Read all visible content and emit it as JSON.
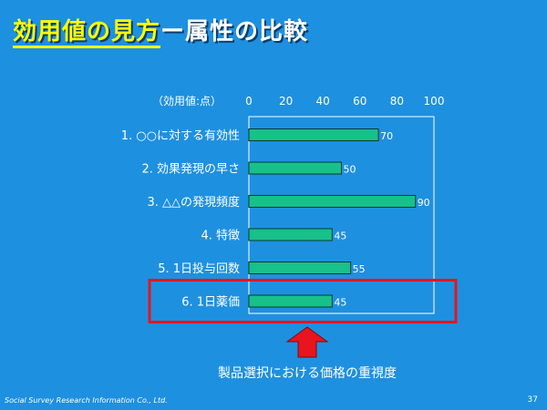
{
  "slide": {
    "title_highlight": "効用値の見方",
    "title_rest": "ー属性の比較",
    "footer": "Social Survey Research Information Co., Ltd.",
    "page_number": "37",
    "caption": "製品選択における価格の重視度",
    "highlight_color": "#e8141e",
    "arrow_color": "#e8141e"
  },
  "chart_data": {
    "type": "bar",
    "orientation": "horizontal",
    "unit_label": "（効用値:点）",
    "categories": [
      "1. ○○に対する有効性",
      "2. 効果発現の早さ",
      "3. △△の発現頻度",
      "4. 特徴",
      "5. 1日投与回数",
      "6. 1日薬価"
    ],
    "values": [
      70,
      50,
      90,
      45,
      55,
      45
    ],
    "xlim": [
      0,
      100
    ],
    "ticks": [
      0,
      20,
      40,
      60,
      80,
      100
    ],
    "bar_color": "#18c08a",
    "highlighted_category_index": 5
  }
}
